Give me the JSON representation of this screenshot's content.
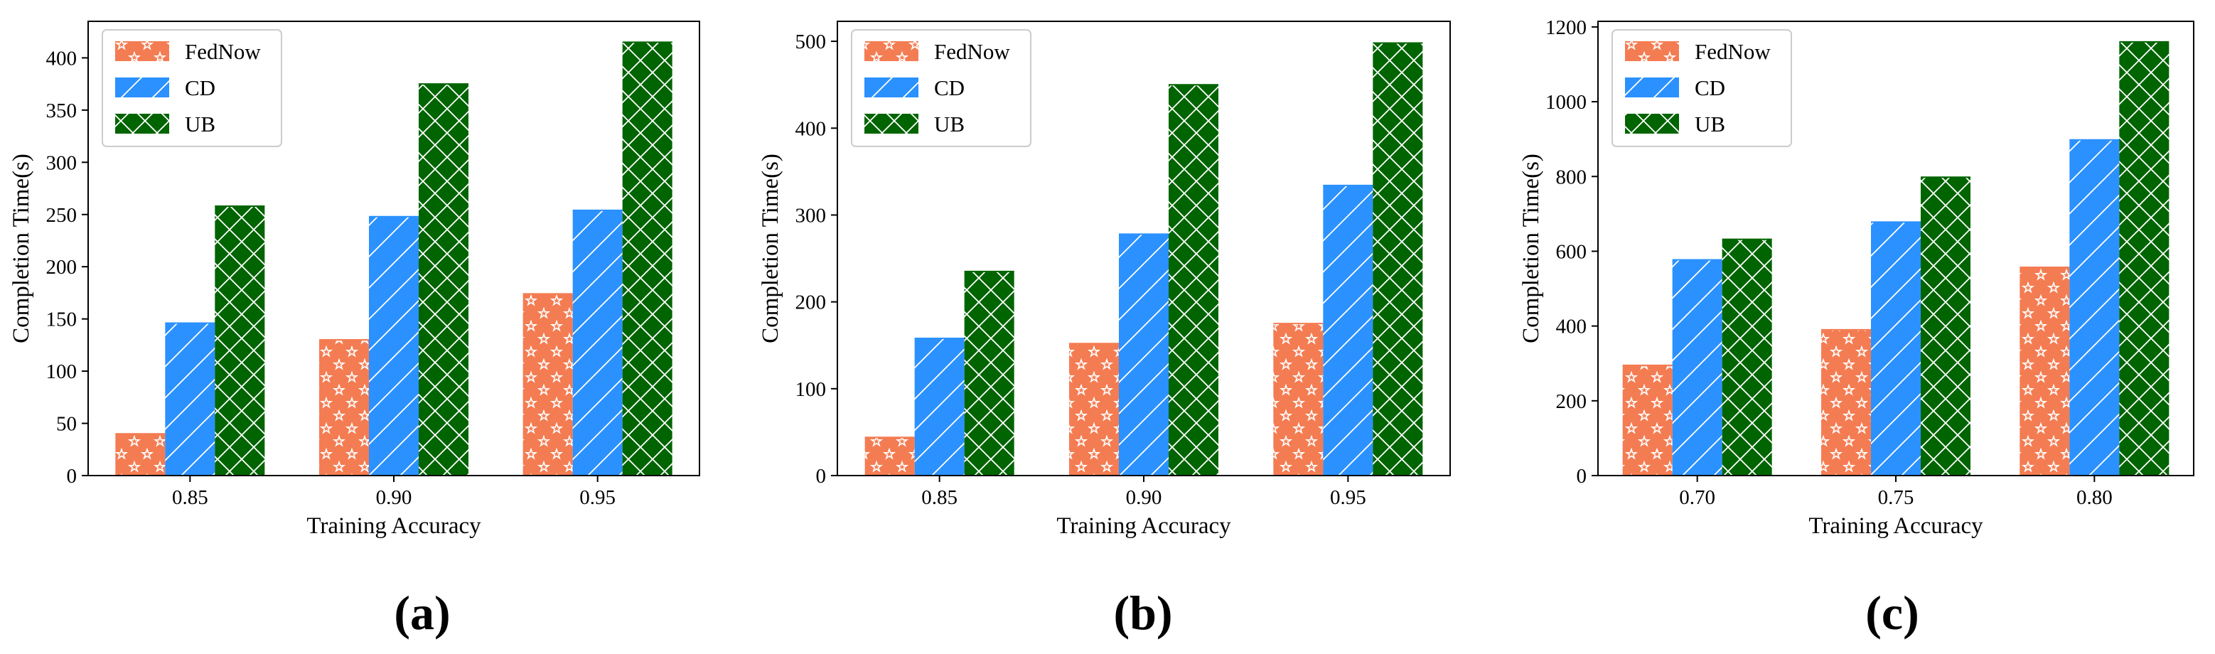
{
  "colors": {
    "fednow": "#f47c52",
    "cd": "#2b91ff",
    "ub": "#006400",
    "axis": "#000000",
    "legend_border": "#cccccc"
  },
  "legend_entries": [
    "FedNow",
    "CD",
    "UB"
  ],
  "chart_data": [
    {
      "type": "bar",
      "panel_label": "(a)",
      "xlabel": "Training Accuracy",
      "ylabel": "Completion Time(s)",
      "categories": [
        "0.85",
        "0.90",
        "0.95"
      ],
      "ylim": [
        0,
        435
      ],
      "yticks": [
        "0",
        "50",
        "100",
        "150",
        "200",
        "250",
        "300",
        "350",
        "400"
      ],
      "legend_position": "top-left",
      "series": [
        {
          "name": "FedNow",
          "values": [
            40,
            130,
            174
          ]
        },
        {
          "name": "CD",
          "values": [
            146,
            248,
            254
          ]
        },
        {
          "name": "UB",
          "values": [
            258,
            375,
            415
          ]
        }
      ]
    },
    {
      "type": "bar",
      "panel_label": "(b)",
      "xlabel": "Training Accuracy",
      "ylabel": "Completion Time(s)",
      "categories": [
        "0.85",
        "0.90",
        "0.95"
      ],
      "ylim": [
        0,
        523
      ],
      "yticks": [
        "0",
        "100",
        "200",
        "300",
        "400",
        "500"
      ],
      "legend_position": "top-left",
      "series": [
        {
          "name": "FedNow",
          "values": [
            44,
            152,
            175
          ]
        },
        {
          "name": "CD",
          "values": [
            158,
            278,
            334
          ]
        },
        {
          "name": "UB",
          "values": [
            235,
            450,
            498
          ]
        }
      ]
    },
    {
      "type": "bar",
      "panel_label": "(c)",
      "xlabel": "Training Accuracy",
      "ylabel": "Completion Time(s)",
      "categories": [
        "0.70",
        "0.75",
        "0.80"
      ],
      "ylim": [
        0,
        1215
      ],
      "yticks": [
        "0",
        "200",
        "400",
        "600",
        "800",
        "1000",
        "1200"
      ],
      "legend_position": "top-left",
      "series": [
        {
          "name": "FedNow",
          "values": [
            295,
            390,
            557
          ]
        },
        {
          "name": "CD",
          "values": [
            577,
            678,
            898
          ]
        },
        {
          "name": "UB",
          "values": [
            632,
            798,
            1160
          ]
        }
      ]
    }
  ]
}
